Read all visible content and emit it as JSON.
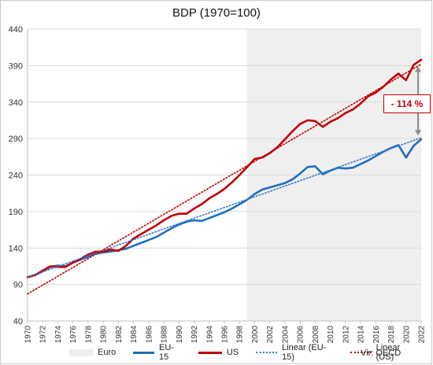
{
  "chart_data": {
    "type": "line",
    "title": "BDP (1970=100)",
    "xlabel": "",
    "ylabel": "",
    "xlim": [
      1970,
      2022
    ],
    "ylim": [
      40,
      440
    ],
    "yticks": [
      40,
      90,
      140,
      190,
      240,
      290,
      340,
      390,
      440
    ],
    "xticks": [
      1970,
      1972,
      1974,
      1976,
      1978,
      1980,
      1982,
      1984,
      1986,
      1988,
      1990,
      1992,
      1994,
      1996,
      1998,
      2000,
      2002,
      2004,
      2006,
      2008,
      2010,
      2012,
      2014,
      2016,
      2018,
      2020,
      2022
    ],
    "grid": "horizontal",
    "legend_position": "bottom",
    "shaded_region": {
      "name": "Euro",
      "from": 1999,
      "to": 2022,
      "color": "#efefef"
    },
    "series": [
      {
        "name": "EU-15",
        "color": "#1f6fbf",
        "style": "solid",
        "x": [
          1970,
          1971,
          1972,
          1973,
          1974,
          1975,
          1976,
          1977,
          1978,
          1979,
          1980,
          1981,
          1982,
          1983,
          1984,
          1985,
          1986,
          1987,
          1988,
          1989,
          1990,
          1991,
          1992,
          1993,
          1994,
          1995,
          1996,
          1997,
          1998,
          1999,
          2000,
          2001,
          2002,
          2003,
          2004,
          2005,
          2006,
          2007,
          2008,
          2009,
          2010,
          2011,
          2012,
          2013,
          2014,
          2015,
          2016,
          2017,
          2018,
          2019,
          2020,
          2021,
          2022
        ],
        "values": [
          100,
          103,
          108,
          114,
          116,
          115,
          120,
          124,
          128,
          132,
          134,
          135,
          137,
          139,
          143,
          147,
          151,
          155,
          161,
          167,
          172,
          176,
          178,
          177,
          181,
          185,
          189,
          194,
          200,
          206,
          214,
          220,
          223,
          226,
          229,
          234,
          242,
          251,
          252,
          241,
          246,
          250,
          249,
          250,
          255,
          260,
          266,
          272,
          277,
          281,
          264,
          280,
          289
        ]
      },
      {
        "name": "US",
        "color": "#c00000",
        "style": "solid",
        "x": [
          1970,
          1971,
          1972,
          1973,
          1974,
          1975,
          1976,
          1977,
          1978,
          1979,
          1980,
          1981,
          1982,
          1983,
          1984,
          1985,
          1986,
          1987,
          1988,
          1989,
          1990,
          1991,
          1992,
          1993,
          1994,
          1995,
          1996,
          1997,
          1998,
          1999,
          2000,
          2001,
          2002,
          2003,
          2004,
          2005,
          2006,
          2007,
          2008,
          2009,
          2010,
          2011,
          2012,
          2013,
          2014,
          2015,
          2016,
          2017,
          2018,
          2019,
          2020,
          2021,
          2022
        ],
        "values": [
          100,
          103,
          109,
          115,
          114,
          114,
          120,
          125,
          131,
          135,
          135,
          138,
          136,
          143,
          153,
          159,
          165,
          171,
          178,
          184,
          187,
          187,
          194,
          200,
          208,
          214,
          221,
          230,
          240,
          251,
          262,
          264,
          270,
          278,
          289,
          300,
          310,
          315,
          314,
          306,
          313,
          318,
          325,
          330,
          338,
          348,
          353,
          361,
          371,
          379,
          370,
          391,
          398
        ]
      },
      {
        "name": "Linear (EU-15)",
        "color": "#3a78c8",
        "style": "dotted",
        "x": [
          1970,
          2022
        ],
        "values": [
          100,
          291
        ]
      },
      {
        "name": "Linear (US)",
        "color": "#c00000",
        "style": "dotted",
        "x": [
          1970,
          2022
        ],
        "values": [
          77,
          392
        ]
      }
    ],
    "annotation": {
      "text": "- 114 %",
      "x": 2022,
      "from": 291,
      "to": 392
    }
  },
  "legend": {
    "euro": "Euro",
    "eu15": "EU-15",
    "us": "US",
    "linear_eu15": "Linear (EU-15)",
    "linear_us": "Linear (US)"
  },
  "source": "Vir: OECD"
}
